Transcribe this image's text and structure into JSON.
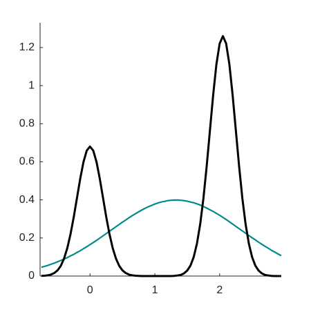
{
  "chart_data": {
    "type": "line",
    "x": [
      -0.75,
      -0.7,
      -0.65,
      -0.6,
      -0.55,
      -0.5,
      -0.45,
      -0.4,
      -0.35,
      -0.3,
      -0.25,
      -0.2,
      -0.15,
      -0.1,
      -0.05,
      0,
      0.05,
      0.1,
      0.15,
      0.2,
      0.25,
      0.3,
      0.35,
      0.4,
      0.45,
      0.5,
      0.55,
      0.6,
      0.65,
      0.7,
      0.75,
      0.8,
      0.85,
      0.9,
      0.95,
      1,
      1.05,
      1.1,
      1.15,
      1.2,
      1.25,
      1.3,
      1.35,
      1.4,
      1.45,
      1.5,
      1.55,
      1.6,
      1.65,
      1.7,
      1.75,
      1.8,
      1.85,
      1.9,
      1.95,
      2,
      2.05,
      2.1,
      2.15,
      2.2,
      2.25,
      2.3,
      2.35,
      2.4,
      2.45,
      2.5,
      2.55,
      2.6,
      2.65,
      2.7,
      2.75,
      2.8,
      2.85,
      2.9,
      2.95
    ],
    "series": [
      {
        "color": "#000000",
        "values": [
          0.001,
          0.002,
          0.004,
          0.008,
          0.016,
          0.03,
          0.054,
          0.092,
          0.147,
          0.221,
          0.311,
          0.412,
          0.513,
          0.6,
          0.659,
          0.68,
          0.659,
          0.6,
          0.513,
          0.412,
          0.311,
          0.221,
          0.147,
          0.092,
          0.054,
          0.03,
          0.016,
          0.008,
          0.004,
          0.002,
          0.001,
          0,
          0,
          0,
          0,
          0,
          0,
          0,
          0,
          0,
          0,
          0.001,
          0.003,
          0.006,
          0.014,
          0.029,
          0.055,
          0.1,
          0.171,
          0.273,
          0.409,
          0.577,
          0.764,
          0.951,
          1.112,
          1.221,
          1.26,
          1.221,
          1.112,
          0.951,
          0.764,
          0.577,
          0.409,
          0.273,
          0.171,
          0.1,
          0.055,
          0.029,
          0.014,
          0.006,
          0.003,
          0.001,
          0,
          0,
          0
        ]
      },
      {
        "color": "#008b8b",
        "values": [
          0.046,
          0.051,
          0.056,
          0.062,
          0.068,
          0.075,
          0.082,
          0.089,
          0.097,
          0.106,
          0.114,
          0.124,
          0.133,
          0.144,
          0.154,
          0.165,
          0.176,
          0.187,
          0.199,
          0.211,
          0.223,
          0.235,
          0.247,
          0.259,
          0.271,
          0.283,
          0.294,
          0.306,
          0.317,
          0.327,
          0.337,
          0.347,
          0.356,
          0.364,
          0.371,
          0.378,
          0.384,
          0.389,
          0.392,
          0.396,
          0.398,
          0.399,
          0.399,
          0.398,
          0.396,
          0.393,
          0.389,
          0.385,
          0.379,
          0.373,
          0.365,
          0.357,
          0.348,
          0.339,
          0.329,
          0.319,
          0.308,
          0.297,
          0.285,
          0.273,
          0.261,
          0.249,
          0.237,
          0.225,
          0.213,
          0.201,
          0.19,
          0.178,
          0.167,
          0.156,
          0.146,
          0.135,
          0.126,
          0.116,
          0.107
        ]
      }
    ],
    "xlim": [
      -0.77,
      2.94
    ],
    "ylim": [
      0,
      1.33
    ],
    "xticks": [
      0,
      1,
      2
    ],
    "yticks": [
      0,
      0.2,
      0.4,
      0.6,
      0.8,
      1,
      1.2
    ]
  }
}
